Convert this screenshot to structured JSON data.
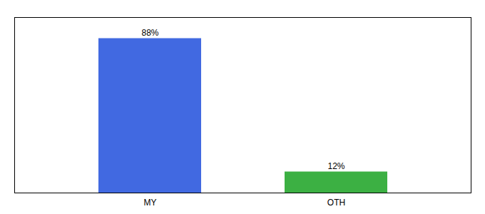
{
  "chart_data": {
    "type": "bar",
    "categories": [
      "MY",
      "OTH"
    ],
    "values": [
      88,
      12
    ],
    "value_labels": [
      "88%",
      "12%"
    ],
    "colors": [
      "#4169e1",
      "#3cb043"
    ],
    "ylim": [
      0,
      100
    ],
    "data_labels": true,
    "tick_labels": "x"
  }
}
